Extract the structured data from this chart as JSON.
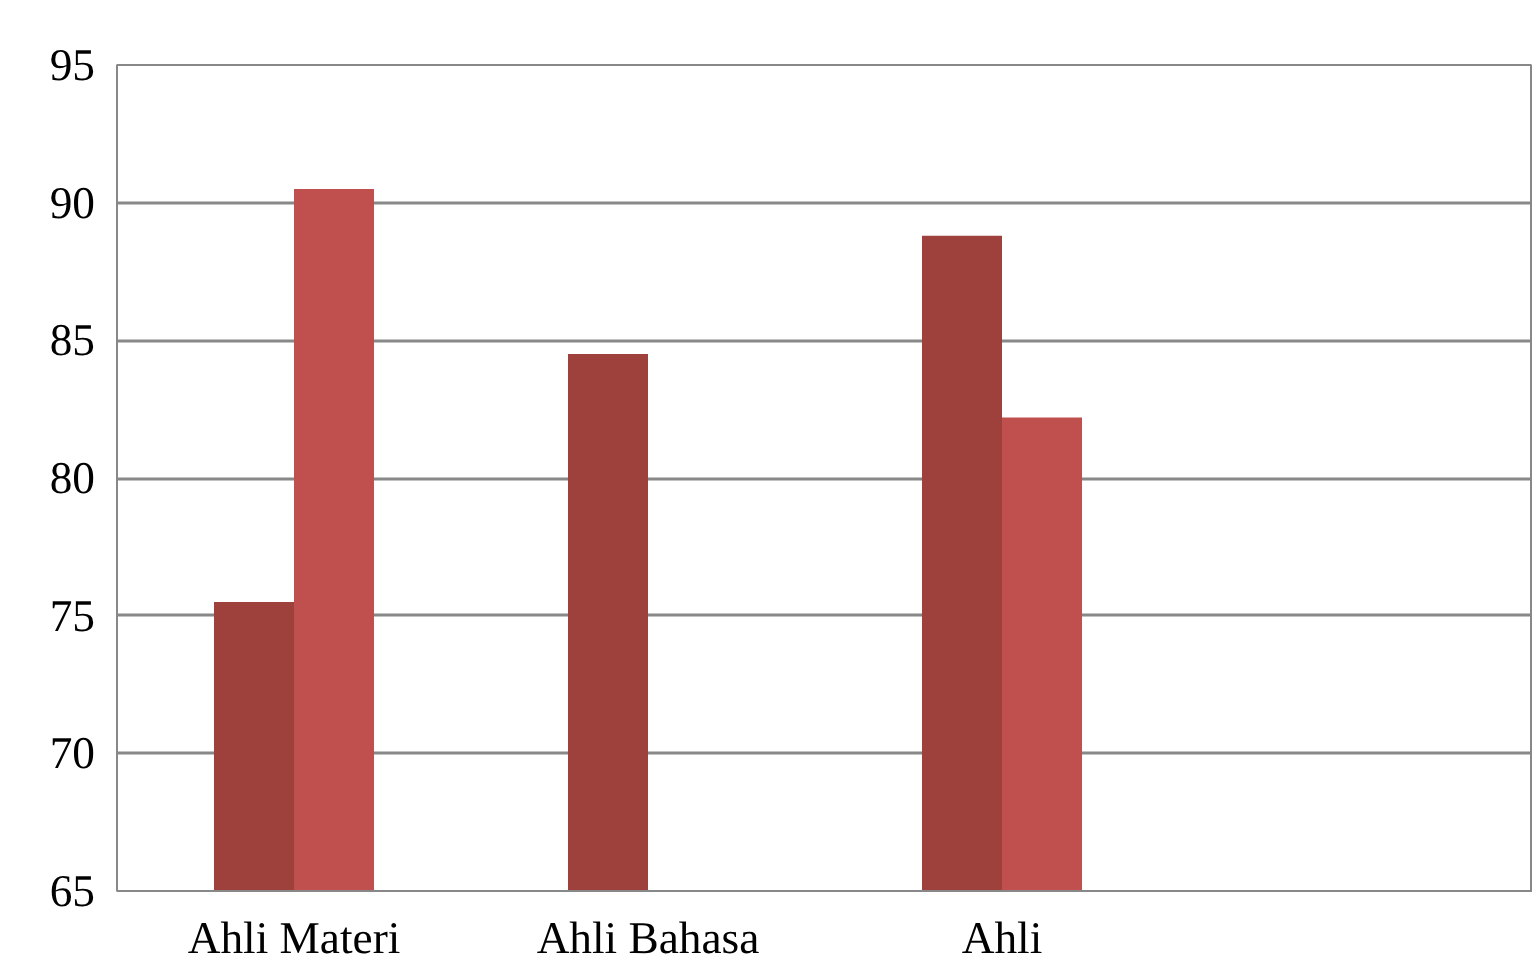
{
  "chart_data": {
    "type": "bar",
    "categories": [
      "Ahli Materi",
      "Ahli Bahasa",
      "Ahli",
      null
    ],
    "series": [
      {
        "color": "#9e413c",
        "values": [
          75.5,
          84.5,
          88.8,
          null
        ]
      },
      {
        "color": "#c0504d",
        "values": [
          90.5,
          null,
          82.2,
          null
        ]
      }
    ],
    "ylim": [
      65,
      95
    ],
    "yticks": [
      65,
      70,
      75,
      80,
      85,
      90,
      95
    ],
    "grid": "y"
  }
}
